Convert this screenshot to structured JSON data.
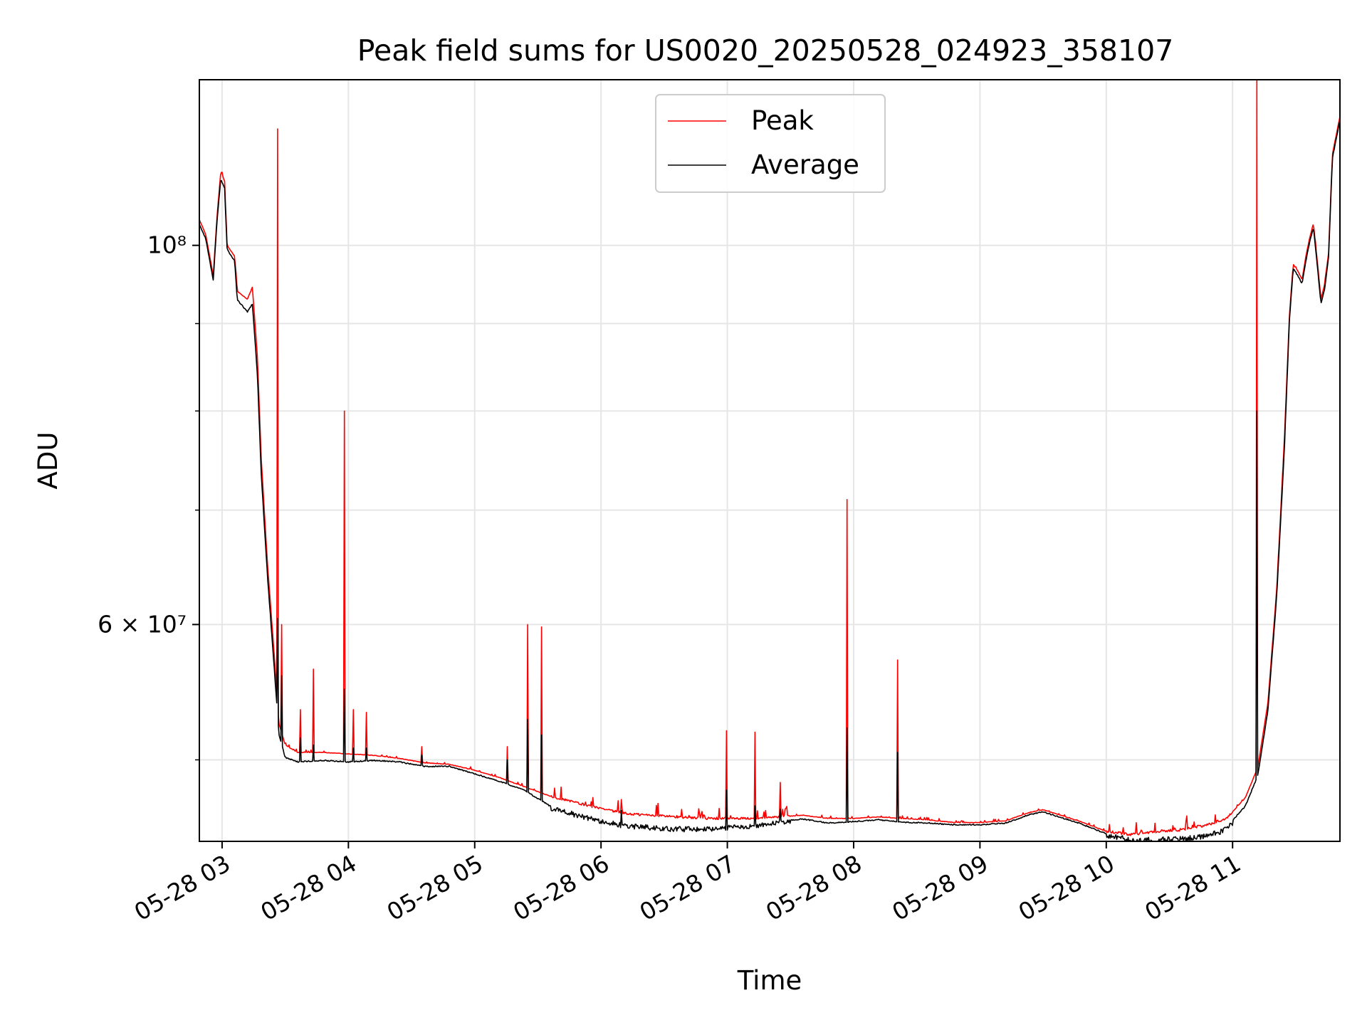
{
  "chart_data": {
    "type": "line",
    "title": "Peak field sums for US0020_20250528_024923_358107",
    "xlabel": "Time",
    "ylabel": "ADU",
    "y_scale": "log",
    "ylim": [
      44800000,
      125000000
    ],
    "x_unit": "hours since 05-28 00:00",
    "xlim": [
      2.82,
      11.85
    ],
    "x_ticks": [
      {
        "value": 3,
        "label": "05-28 03"
      },
      {
        "value": 4,
        "label": "05-28 04"
      },
      {
        "value": 5,
        "label": "05-28 05"
      },
      {
        "value": 6,
        "label": "05-28 06"
      },
      {
        "value": 7,
        "label": "05-28 07"
      },
      {
        "value": 8,
        "label": "05-28 08"
      },
      {
        "value": 9,
        "label": "05-28 09"
      },
      {
        "value": 10,
        "label": "05-28 10"
      },
      {
        "value": 11,
        "label": "05-28 11"
      }
    ],
    "y_major_ticks": [
      {
        "value": 60000000,
        "label": "6 × 10⁷"
      },
      {
        "value": 100000000,
        "label": "10⁸"
      }
    ],
    "y_minor_ticks": [
      50000000,
      70000000,
      80000000,
      90000000
    ],
    "grid": true,
    "legend_position": "top-center",
    "series": [
      {
        "name": "Peak",
        "color": "#ff0000",
        "points": [
          [
            2.82,
            103500000
          ],
          [
            2.87,
            101500000
          ],
          [
            2.93,
            96000000
          ],
          [
            2.96,
            104000000
          ],
          [
            2.99,
            110500000
          ],
          [
            3.02,
            109000000
          ],
          [
            3.04,
            100000000
          ],
          [
            3.1,
            98500000
          ],
          [
            3.12,
            94000000
          ],
          [
            3.2,
            93000000
          ],
          [
            3.24,
            94500000
          ],
          [
            3.28,
            86000000
          ],
          [
            3.31,
            75000000
          ],
          [
            3.36,
            65000000
          ],
          [
            3.41,
            58000000
          ],
          [
            3.45,
            52500000
          ],
          [
            3.5,
            51000000
          ],
          [
            3.6,
            50500000
          ],
          [
            3.8,
            50500000
          ],
          [
            4.0,
            50400000
          ],
          [
            4.2,
            50300000
          ],
          [
            4.4,
            50100000
          ],
          [
            4.6,
            49800000
          ],
          [
            4.8,
            49700000
          ],
          [
            5.0,
            49300000
          ],
          [
            5.2,
            48800000
          ],
          [
            5.4,
            48200000
          ],
          [
            5.6,
            47600000
          ],
          [
            5.8,
            47200000
          ],
          [
            6.0,
            46800000
          ],
          [
            6.2,
            46500000
          ],
          [
            6.4,
            46400000
          ],
          [
            6.6,
            46300000
          ],
          [
            6.8,
            46200000
          ],
          [
            7.0,
            46200000
          ],
          [
            7.2,
            46200000
          ],
          [
            7.4,
            46300000
          ],
          [
            7.6,
            46400000
          ],
          [
            7.8,
            46200000
          ],
          [
            8.0,
            46200000
          ],
          [
            8.2,
            46300000
          ],
          [
            8.4,
            46200000
          ],
          [
            8.6,
            46100000
          ],
          [
            8.8,
            45950000
          ],
          [
            9.0,
            45950000
          ],
          [
            9.2,
            46050000
          ],
          [
            9.4,
            46600000
          ],
          [
            9.5,
            46750000
          ],
          [
            9.6,
            46500000
          ],
          [
            9.8,
            46000000
          ],
          [
            10.0,
            45400000
          ],
          [
            10.2,
            45200000
          ],
          [
            10.4,
            45400000
          ],
          [
            10.6,
            45500000
          ],
          [
            10.8,
            45800000
          ],
          [
            10.95,
            46200000
          ],
          [
            11.1,
            47500000
          ],
          [
            11.2,
            49500000
          ],
          [
            11.28,
            54000000
          ],
          [
            11.35,
            63000000
          ],
          [
            11.41,
            77000000
          ],
          [
            11.45,
            91000000
          ],
          [
            11.48,
            97500000
          ],
          [
            11.52,
            96500000
          ],
          [
            11.55,
            95500000
          ],
          [
            11.58,
            98500000
          ],
          [
            11.61,
            101000000
          ],
          [
            11.64,
            103000000
          ],
          [
            11.67,
            98000000
          ],
          [
            11.7,
            93000000
          ],
          [
            11.73,
            95000000
          ],
          [
            11.76,
            99000000
          ],
          [
            11.79,
            113000000
          ],
          [
            11.85,
            119000000
          ]
        ]
      },
      {
        "name": "Average",
        "color": "#000000",
        "points": [
          [
            2.82,
            103000000
          ],
          [
            2.87,
            101000000
          ],
          [
            2.93,
            95500000
          ],
          [
            2.96,
            103500000
          ],
          [
            2.99,
            109500000
          ],
          [
            3.02,
            108000000
          ],
          [
            3.04,
            99500000
          ],
          [
            3.1,
            98000000
          ],
          [
            3.12,
            93000000
          ],
          [
            3.2,
            91500000
          ],
          [
            3.24,
            92500000
          ],
          [
            3.28,
            84000000
          ],
          [
            3.31,
            73500000
          ],
          [
            3.36,
            64000000
          ],
          [
            3.41,
            57000000
          ],
          [
            3.45,
            51800000
          ],
          [
            3.5,
            50200000
          ],
          [
            3.6,
            49900000
          ],
          [
            3.8,
            50000000
          ],
          [
            4.0,
            49900000
          ],
          [
            4.2,
            50000000
          ],
          [
            4.4,
            49900000
          ],
          [
            4.6,
            49600000
          ],
          [
            4.8,
            49600000
          ],
          [
            5.0,
            49100000
          ],
          [
            5.2,
            48600000
          ],
          [
            5.4,
            48000000
          ],
          [
            5.6,
            47000000
          ],
          [
            5.8,
            46600000
          ],
          [
            6.0,
            46200000
          ],
          [
            6.2,
            45900000
          ],
          [
            6.4,
            45800000
          ],
          [
            6.6,
            45700000
          ],
          [
            6.8,
            45700000
          ],
          [
            7.0,
            45800000
          ],
          [
            7.2,
            45850000
          ],
          [
            7.4,
            46100000
          ],
          [
            7.6,
            46200000
          ],
          [
            7.8,
            45950000
          ],
          [
            8.0,
            46050000
          ],
          [
            8.2,
            46150000
          ],
          [
            8.4,
            46000000
          ],
          [
            8.6,
            45950000
          ],
          [
            8.8,
            45850000
          ],
          [
            9.0,
            45850000
          ],
          [
            9.2,
            45950000
          ],
          [
            9.4,
            46500000
          ],
          [
            9.5,
            46650000
          ],
          [
            9.6,
            46400000
          ],
          [
            9.8,
            45900000
          ],
          [
            10.0,
            45300000
          ],
          [
            10.2,
            45050000
          ],
          [
            10.4,
            45050000
          ],
          [
            10.6,
            45100000
          ],
          [
            10.8,
            45300000
          ],
          [
            10.95,
            45700000
          ],
          [
            11.1,
            47000000
          ],
          [
            11.2,
            49000000
          ],
          [
            11.28,
            53500000
          ],
          [
            11.35,
            62500000
          ],
          [
            11.41,
            76000000
          ],
          [
            11.45,
            90500000
          ],
          [
            11.48,
            97000000
          ],
          [
            11.52,
            96000000
          ],
          [
            11.55,
            95000000
          ],
          [
            11.58,
            98000000
          ],
          [
            11.61,
            100500000
          ],
          [
            11.64,
            102500000
          ],
          [
            11.67,
            97500000
          ],
          [
            11.7,
            92500000
          ],
          [
            11.73,
            94500000
          ],
          [
            11.76,
            98500000
          ],
          [
            11.79,
            112500000
          ],
          [
            11.85,
            118500000
          ]
        ]
      }
    ],
    "spikes": [
      {
        "x": 3.44,
        "peak": 117000000,
        "average": 60500000
      },
      {
        "x": 3.47,
        "peak": 60000000,
        "average": 56000000
      },
      {
        "x": 3.62,
        "peak": 53500000,
        "average": 51500000
      },
      {
        "x": 3.72,
        "peak": 56500000,
        "average": 51000000
      },
      {
        "x": 3.97,
        "peak": 80000000,
        "average": 55000000
      },
      {
        "x": 4.04,
        "peak": 53500000,
        "average": 50800000
      },
      {
        "x": 4.14,
        "peak": 53300000,
        "average": 50800000
      },
      {
        "x": 4.58,
        "peak": 50900000,
        "average": 50300000
      },
      {
        "x": 5.26,
        "peak": 50900000,
        "average": 50000000
      },
      {
        "x": 5.42,
        "peak": 60000000,
        "average": 52800000
      },
      {
        "x": 5.53,
        "peak": 59800000,
        "average": 51700000
      },
      {
        "x": 6.16,
        "peak": 47400000,
        "average": 46700000
      },
      {
        "x": 6.99,
        "peak": 52000000,
        "average": 48000000
      },
      {
        "x": 7.22,
        "peak": 51900000,
        "average": 47000000
      },
      {
        "x": 7.42,
        "peak": 48500000,
        "average": 46800000
      },
      {
        "x": 7.95,
        "peak": 71000000,
        "average": 52200000
      },
      {
        "x": 8.35,
        "peak": 57200000,
        "average": 50500000
      },
      {
        "x": 11.19,
        "peak": 125000000,
        "average": 80000000
      }
    ],
    "noise": [
      {
        "x0": 5.6,
        "x1": 7.0,
        "amplitude": 0.012
      },
      {
        "x0": 7.0,
        "x1": 7.5,
        "amplitude": 0.01
      },
      {
        "x0": 10.0,
        "x1": 11.0,
        "amplitude": 0.013
      }
    ]
  }
}
